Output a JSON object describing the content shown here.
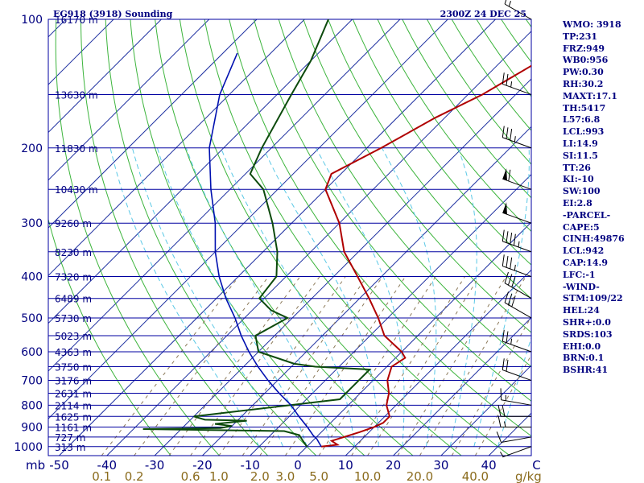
{
  "header": {
    "station": "EG918 (3918) Sounding",
    "valid_time": "2300Z 24 DEC 25"
  },
  "colors": {
    "axes": "#000080",
    "isobar": "#0000a0",
    "isotherm": "#1d2fa0",
    "dry_adiabat": "#3cb43c",
    "moist_adiabat": "#5ac8e6",
    "mixing_ratio": "#8c7a5a",
    "temperature": "#b00000",
    "dewpoint": "#0c4a0c",
    "parcel": "#0010b0",
    "wind_barb": "#000000"
  },
  "chart_data": {
    "type": "skew-t log-p sounding",
    "pressure_labels": [
      {
        "p": 100,
        "text": "100"
      },
      {
        "p": 200,
        "text": "200"
      },
      {
        "p": 300,
        "text": "300"
      },
      {
        "p": 400,
        "text": "400"
      },
      {
        "p": 500,
        "text": "500"
      },
      {
        "p": 600,
        "text": "600"
      },
      {
        "p": 700,
        "text": "700"
      },
      {
        "p": 800,
        "text": "800"
      },
      {
        "p": 900,
        "text": "900"
      },
      {
        "p": 1000,
        "text": "1000"
      }
    ],
    "height_labels": [
      {
        "p": 100,
        "text": "16170 m"
      },
      {
        "p": 150,
        "text": "13630 m"
      },
      {
        "p": 200,
        "text": "11830 m"
      },
      {
        "p": 250,
        "text": "10430 m"
      },
      {
        "p": 300,
        "text": "9260 m"
      },
      {
        "p": 350,
        "text": "8230 m"
      },
      {
        "p": 400,
        "text": "7320 m"
      },
      {
        "p": 450,
        "text": "6489 m"
      },
      {
        "p": 500,
        "text": "5730 m"
      },
      {
        "p": 550,
        "text": "5023 m"
      },
      {
        "p": 600,
        "text": "4363 m"
      },
      {
        "p": 650,
        "text": "3750 m"
      },
      {
        "p": 700,
        "text": "3176 m"
      },
      {
        "p": 750,
        "text": "2631 m"
      },
      {
        "p": 800,
        "text": "2114 m"
      },
      {
        "p": 850,
        "text": "1625 m"
      },
      {
        "p": 900,
        "text": "1161 m"
      },
      {
        "p": 950,
        "text": "727 m"
      },
      {
        "p": 1000,
        "text": "313 m"
      }
    ],
    "pressure_unit_label": "mb",
    "temperature_labels": [
      {
        "t": -50,
        "text": "-50"
      },
      {
        "t": -40,
        "text": "-40"
      },
      {
        "t": -30,
        "text": "-30"
      },
      {
        "t": -20,
        "text": "-20"
      },
      {
        "t": -10,
        "text": "-10"
      },
      {
        "t": 0,
        "text": "0"
      },
      {
        "t": 10,
        "text": "10"
      },
      {
        "t": 20,
        "text": "20"
      },
      {
        "t": 30,
        "text": "30"
      },
      {
        "t": 40,
        "text": "40"
      },
      {
        "t": 50,
        "text": "C"
      }
    ],
    "mixing_ratio_labels": [
      {
        "w": 0.1,
        "text": "0.1"
      },
      {
        "w": 0.2,
        "text": "0.2"
      },
      {
        "w": 0.6,
        "text": "0.6"
      },
      {
        "w": 1.0,
        "text": "1.0"
      },
      {
        "w": 2.0,
        "text": "2.0"
      },
      {
        "w": 3.0,
        "text": "3.0"
      },
      {
        "w": 5.0,
        "text": "5.0"
      },
      {
        "w": 10.0,
        "text": "10.0"
      },
      {
        "w": 20.0,
        "text": "20.0"
      },
      {
        "w": 40.0,
        "text": "40.0"
      }
    ],
    "mixing_ratio_unit": "g/kg",
    "mixing_ratio_lines": [
      0.1,
      0.2,
      0.4,
      0.6,
      1.0,
      1.5,
      2.0,
      3.0,
      5.0,
      8.0,
      10.0,
      15.0,
      20.0,
      30.0,
      40.0
    ],
    "temperature_profile": [
      [
        1000,
        3
      ],
      [
        990,
        6
      ],
      [
        970,
        4
      ],
      [
        925,
        8
      ],
      [
        900,
        10
      ],
      [
        880,
        11
      ],
      [
        850,
        11
      ],
      [
        800,
        8
      ],
      [
        750,
        6
      ],
      [
        700,
        3
      ],
      [
        650,
        1
      ],
      [
        620,
        2
      ],
      [
        600,
        0
      ],
      [
        550,
        -7
      ],
      [
        500,
        -12
      ],
      [
        450,
        -18
      ],
      [
        400,
        -25
      ],
      [
        350,
        -33
      ],
      [
        300,
        -40
      ],
      [
        250,
        -50
      ],
      [
        230,
        -52
      ],
      [
        200,
        -47
      ],
      [
        170,
        -42
      ],
      [
        150,
        -37
      ],
      [
        125,
        -32
      ],
      [
        115,
        -30
      ],
      [
        105,
        -27
      ],
      [
        100,
        -26
      ]
    ],
    "dewpoint_profile": [
      [
        1000,
        0
      ],
      [
        970,
        -2
      ],
      [
        940,
        -4
      ],
      [
        920,
        -8
      ],
      [
        910,
        -38
      ],
      [
        905,
        -22
      ],
      [
        895,
        -20
      ],
      [
        885,
        -24
      ],
      [
        870,
        -18
      ],
      [
        865,
        -27
      ],
      [
        850,
        -30
      ],
      [
        830,
        -23
      ],
      [
        775,
        -3
      ],
      [
        720,
        -3
      ],
      [
        660,
        -3
      ],
      [
        650,
        -15
      ],
      [
        640,
        -20
      ],
      [
        600,
        -30
      ],
      [
        550,
        -34
      ],
      [
        500,
        -31
      ],
      [
        480,
        -36
      ],
      [
        450,
        -41
      ],
      [
        400,
        -42
      ],
      [
        350,
        -47
      ],
      [
        300,
        -54
      ],
      [
        250,
        -63
      ],
      [
        230,
        -69
      ],
      [
        200,
        -72
      ],
      [
        150,
        -77
      ],
      [
        125,
        -80
      ],
      [
        100,
        -85
      ]
    ],
    "parcel_profile": [
      [
        1000,
        3
      ],
      [
        960,
        0.5
      ],
      [
        942,
        -1
      ],
      [
        900,
        -4
      ],
      [
        850,
        -8
      ],
      [
        800,
        -12
      ],
      [
        750,
        -17
      ],
      [
        700,
        -22
      ],
      [
        650,
        -27
      ],
      [
        600,
        -32
      ],
      [
        550,
        -37
      ],
      [
        500,
        -42
      ],
      [
        450,
        -48
      ],
      [
        400,
        -54
      ],
      [
        350,
        -60
      ],
      [
        300,
        -66
      ],
      [
        250,
        -74
      ],
      [
        200,
        -83
      ],
      [
        150,
        -92
      ],
      [
        120,
        -97
      ]
    ],
    "winds": [
      {
        "p": 100,
        "dir": 300,
        "spd": 15
      },
      {
        "p": 150,
        "dir": 290,
        "spd": 25
      },
      {
        "p": 200,
        "dir": 290,
        "spd": 35
      },
      {
        "p": 250,
        "dir": 290,
        "spd": 60
      },
      {
        "p": 300,
        "dir": 290,
        "spd": 50
      },
      {
        "p": 350,
        "dir": 290,
        "spd": 45
      },
      {
        "p": 400,
        "dir": 290,
        "spd": 35
      },
      {
        "p": 450,
        "dir": 300,
        "spd": 30
      },
      {
        "p": 500,
        "dir": 300,
        "spd": 30
      },
      {
        "p": 600,
        "dir": 290,
        "spd": 25
      },
      {
        "p": 700,
        "dir": 290,
        "spd": 20
      },
      {
        "p": 800,
        "dir": 280,
        "spd": 15
      },
      {
        "p": 850,
        "dir": 270,
        "spd": 20
      },
      {
        "p": 900,
        "dir": 270,
        "spd": 15
      },
      {
        "p": 950,
        "dir": 260,
        "spd": 10
      },
      {
        "p": 1000,
        "dir": 250,
        "spd": 5
      }
    ]
  },
  "indices": [
    "WMO: 3918",
    "TP:231",
    "FRZ:949",
    "WB0:956",
    "PW:0.30",
    "RH:30.2",
    "MAXT:17.1",
    "TH:5417",
    "L57:6.8",
    "LCL:993",
    "LI:14.9",
    "SI:11.5",
    "TT:26",
    "KI:-10",
    "SW:100",
    "EI:2.8",
    "-PARCEL-",
    "CAPE:5",
    "CINH:49876",
    "LCL:942",
    "CAP:14.9",
    "LFC:-1",
    "-WIND-",
    "STM:109/22",
    "HEL:24",
    "SHR+:0.0",
    "SRDS:103",
    "EHI:0.0",
    "BRN:0.1",
    "BSHR:41"
  ]
}
